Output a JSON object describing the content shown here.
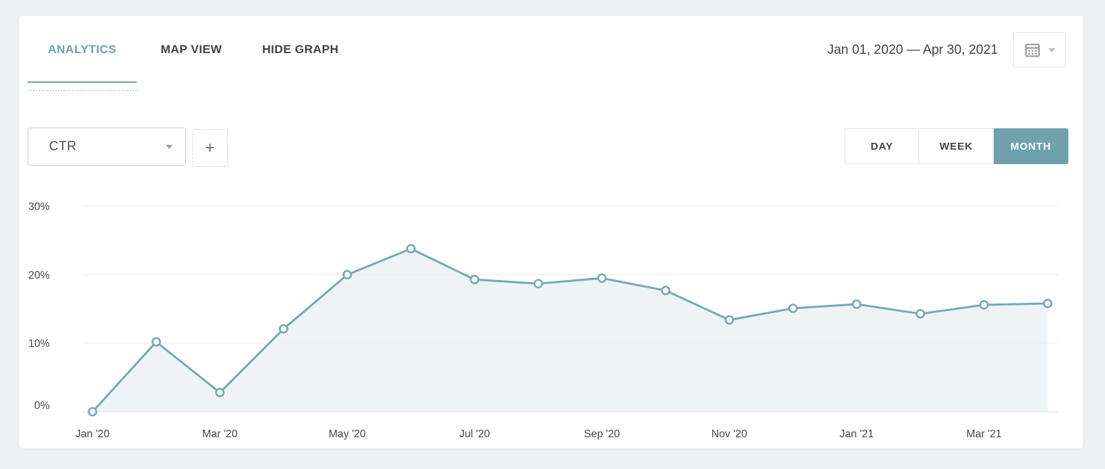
{
  "header": {
    "tabs": [
      {
        "label": "ANALYTICS",
        "active": true
      },
      {
        "label": "MAP VIEW",
        "active": false
      },
      {
        "label": "HIDE GRAPH",
        "active": false
      }
    ],
    "date_range": "Jan 01, 2020 — Apr 30, 2021",
    "calendar_button_icons": [
      "calendar-icon",
      "chevron-down-icon"
    ]
  },
  "controls": {
    "metric_selected": "CTR",
    "add_button_label": "+",
    "granularity": {
      "options": [
        "DAY",
        "WEEK",
        "MONTH"
      ],
      "selected": "MONTH"
    }
  },
  "colors": {
    "accent_teal": "#6da2ae",
    "segment_active_bg": "#6fa1ac",
    "line": "#76a9b4",
    "point_fill": "#ffffff",
    "area_fill": "#eaf1f3",
    "grid": "#eff0f2",
    "axis_line": "#e3e5e9",
    "axis_text": "#42474c",
    "page_bg": "#edeff3",
    "card_bg": "#ffffff"
  },
  "chart_data": {
    "type": "area",
    "series_name": "CTR",
    "categories": [
      "Jan '20",
      "Feb '20",
      "Mar '20",
      "Apr '20",
      "May '20",
      "Jun '20",
      "Jul '20",
      "Aug '20",
      "Sep '20",
      "Oct '20",
      "Nov '20",
      "Dec '20",
      "Jan '21",
      "Feb '21",
      "Mar '21",
      "Apr '21"
    ],
    "values": [
      0,
      10.2,
      2.8,
      12.1,
      20.0,
      23.8,
      19.3,
      18.7,
      19.5,
      17.7,
      13.4,
      15.1,
      15.7,
      14.3,
      15.6,
      15.8
    ],
    "unit": "%",
    "ylim": [
      0,
      30
    ],
    "y_ticks": [
      {
        "value": 0,
        "label": "0%"
      },
      {
        "value": 10,
        "label": "10%"
      },
      {
        "value": 20,
        "label": "20%"
      },
      {
        "value": 30,
        "label": "30%"
      }
    ],
    "x_label_every": 2,
    "grid": true,
    "legend": false
  }
}
